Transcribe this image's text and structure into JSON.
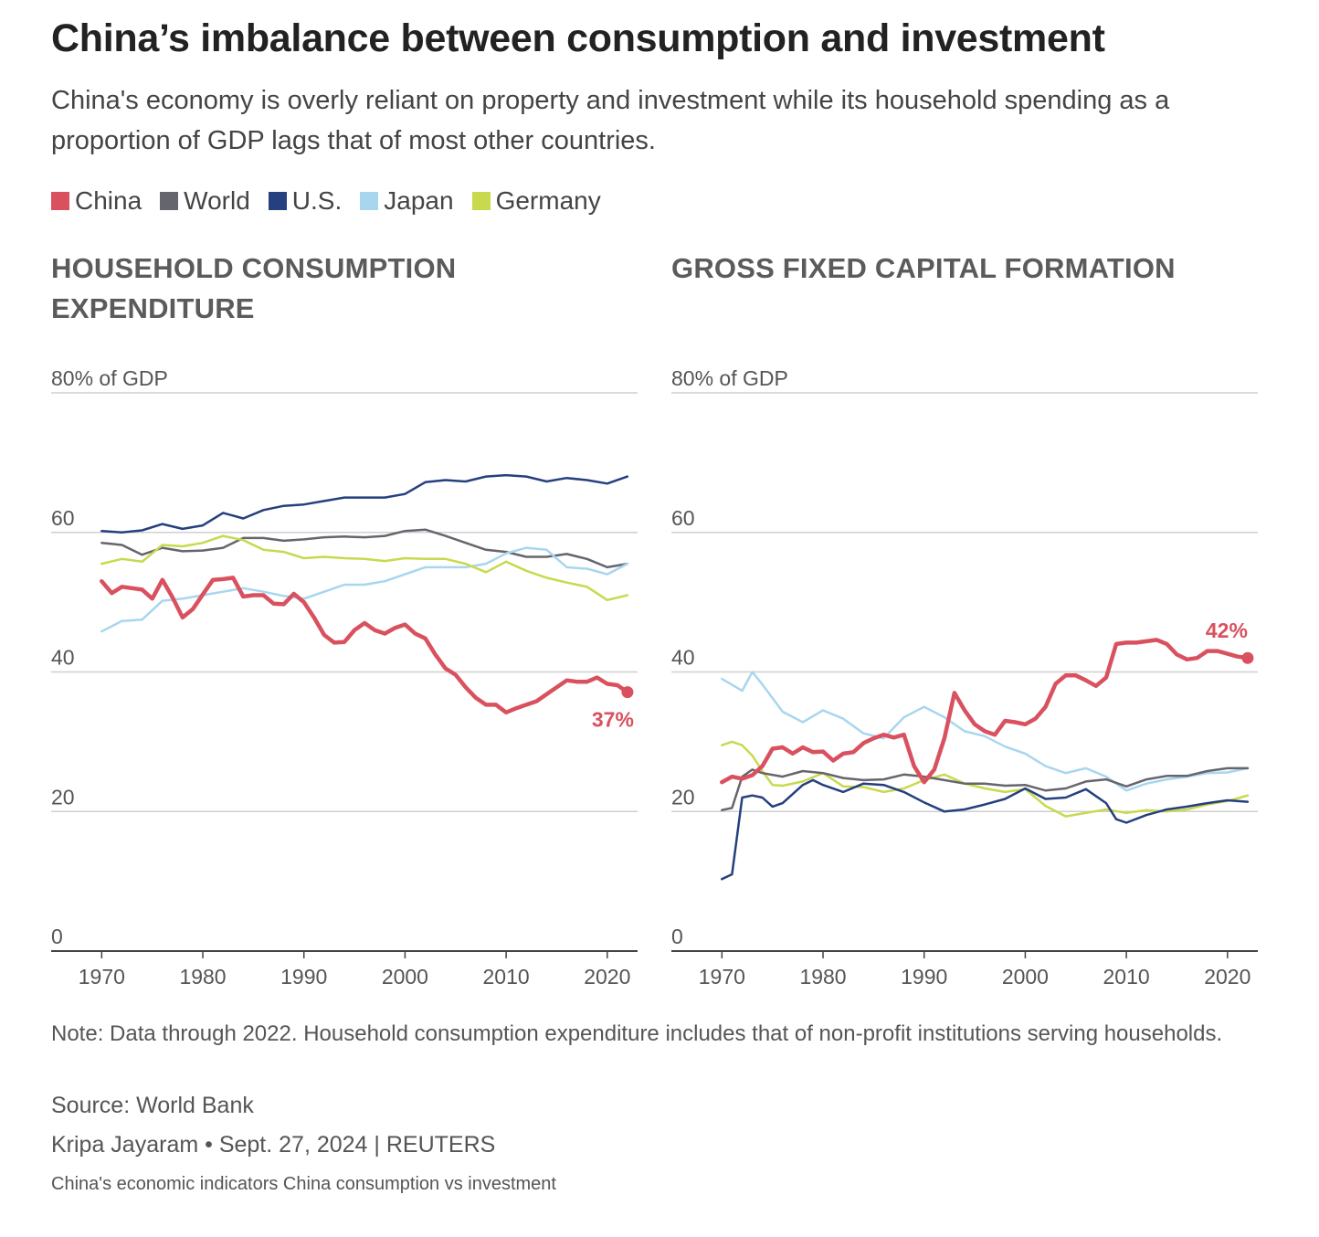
{
  "title": "China’s imbalance between consumption and investment",
  "subtitle": "China's economy is overly reliant on property and investment while its household spending as a proportion of GDP lags that of most other countries.",
  "legend": [
    {
      "name": "China",
      "color": "#d9515f"
    },
    {
      "name": "World",
      "color": "#65656d"
    },
    {
      "name": "U.S.",
      "color": "#253f7f"
    },
    {
      "name": "Japan",
      "color": "#a8d6ef"
    },
    {
      "name": "Germany",
      "color": "#c9d94e"
    }
  ],
  "note": "Note: Data through 2022. Household consumption expenditure includes that of non-profit institutions serving households.",
  "source": "Source: World Bank",
  "byline": "Kripa Jayaram • Sept. 27, 2024 | REUTERS",
  "caption": "China's economic indicators China consumption vs investment",
  "chart_data": [
    {
      "type": "line",
      "title": "HOUSEHOLD CONSUMPTION EXPENDITURE",
      "ylabel_top": "80% of GDP",
      "yticks": [
        0,
        20,
        40,
        60
      ],
      "ylim": [
        0,
        80
      ],
      "xlim": [
        1965,
        2023
      ],
      "xticks": [
        1970,
        1980,
        1990,
        2000,
        2010,
        2020
      ],
      "end_label": "37%",
      "series": [
        {
          "name": "World",
          "x": [
            1970,
            1972,
            1974,
            1976,
            1978,
            1980,
            1982,
            1984,
            1986,
            1988,
            1990,
            1992,
            1994,
            1996,
            1998,
            2000,
            2002,
            2004,
            2006,
            2008,
            2010,
            2012,
            2014,
            2016,
            2018,
            2020,
            2022
          ],
          "y": [
            58.5,
            58.2,
            56.8,
            57.8,
            57.3,
            57.4,
            57.8,
            59.2,
            59.2,
            58.8,
            59,
            59.3,
            59.4,
            59.3,
            59.5,
            60.2,
            60.4,
            59.5,
            58.5,
            57.5,
            57.2,
            56.5,
            56.5,
            56.9,
            56.2,
            55,
            55.5
          ]
        },
        {
          "name": "U.S.",
          "x": [
            1970,
            1972,
            1974,
            1976,
            1978,
            1980,
            1982,
            1984,
            1986,
            1988,
            1990,
            1992,
            1994,
            1996,
            1998,
            2000,
            2002,
            2004,
            2006,
            2008,
            2010,
            2012,
            2014,
            2016,
            2018,
            2020,
            2022
          ],
          "y": [
            60.2,
            60,
            60.3,
            61.2,
            60.5,
            61,
            62.8,
            62,
            63.2,
            63.8,
            64,
            64.5,
            65,
            65,
            65,
            65.5,
            67.2,
            67.5,
            67.3,
            68,
            68.2,
            68,
            67.3,
            67.8,
            67.5,
            67,
            68
          ]
        },
        {
          "name": "Japan",
          "x": [
            1970,
            1972,
            1974,
            1976,
            1978,
            1980,
            1982,
            1984,
            1986,
            1988,
            1990,
            1992,
            1994,
            1996,
            1998,
            2000,
            2002,
            2004,
            2006,
            2008,
            2010,
            2012,
            2014,
            2016,
            2018,
            2020,
            2022
          ],
          "y": [
            45.8,
            47.3,
            47.5,
            50.2,
            50.5,
            51,
            51.5,
            52,
            51.5,
            50.9,
            50.5,
            51.5,
            52.5,
            52.5,
            53,
            54,
            55,
            55,
            55,
            55.5,
            57,
            57.8,
            57.5,
            55,
            54.8,
            54,
            55.5
          ]
        },
        {
          "name": "Germany",
          "x": [
            1970,
            1972,
            1974,
            1976,
            1978,
            1980,
            1982,
            1984,
            1986,
            1988,
            1990,
            1992,
            1994,
            1996,
            1998,
            2000,
            2002,
            2004,
            2006,
            2008,
            2010,
            2012,
            2014,
            2016,
            2018,
            2020,
            2022
          ],
          "y": [
            55.5,
            56.2,
            55.8,
            58.2,
            58,
            58.5,
            59.5,
            58.9,
            57.5,
            57.2,
            56.3,
            56.5,
            56.3,
            56.2,
            55.9,
            56.3,
            56.2,
            56.2,
            55.5,
            54.3,
            55.8,
            54.5,
            53.5,
            52.8,
            52.2,
            50.3,
            51
          ]
        },
        {
          "name": "China",
          "x": [
            1970,
            1971,
            1972,
            1973,
            1974,
            1975,
            1976,
            1977,
            1978,
            1979,
            1980,
            1981,
            1982,
            1983,
            1984,
            1985,
            1986,
            1987,
            1988,
            1989,
            1990,
            1991,
            1992,
            1993,
            1994,
            1995,
            1996,
            1997,
            1998,
            1999,
            2000,
            2001,
            2002,
            2003,
            2004,
            2005,
            2006,
            2007,
            2008,
            2009,
            2010,
            2011,
            2012,
            2013,
            2014,
            2015,
            2016,
            2017,
            2018,
            2019,
            2020,
            2021,
            2022
          ],
          "y": [
            53,
            51.3,
            52.2,
            52,
            51.8,
            50.5,
            53.2,
            50.7,
            47.8,
            49,
            51.1,
            53.2,
            53.3,
            53.5,
            50.8,
            51,
            51,
            49.8,
            49.7,
            51.2,
            50,
            47.8,
            45.3,
            44.2,
            44.3,
            46,
            47,
            46,
            45.5,
            46.3,
            46.8,
            45.5,
            44.8,
            42.5,
            40.5,
            39.6,
            37.8,
            36.3,
            35.3,
            35.3,
            34.2,
            34.8,
            35.3,
            35.8,
            36.8,
            37.8,
            38.8,
            38.6,
            38.6,
            39.2,
            38.3,
            38.1,
            37.1
          ]
        }
      ]
    },
    {
      "type": "line",
      "title": "GROSS FIXED CAPITAL FORMATION",
      "ylabel_top": "80% of GDP",
      "yticks": [
        0,
        20,
        40,
        60
      ],
      "ylim": [
        0,
        80
      ],
      "xlim": [
        1965,
        2023
      ],
      "xticks": [
        1970,
        1980,
        1990,
        2000,
        2010,
        2020
      ],
      "end_label": "42%",
      "series": [
        {
          "name": "Japan",
          "x": [
            1970,
            1972,
            1973,
            1974,
            1976,
            1978,
            1980,
            1982,
            1984,
            1986,
            1988,
            1990,
            1992,
            1994,
            1996,
            1998,
            2000,
            2002,
            2004,
            2006,
            2008,
            2010,
            2012,
            2014,
            2016,
            2018,
            2020,
            2022
          ],
          "y": [
            39,
            37.3,
            40,
            38.2,
            34.3,
            32.8,
            34.5,
            33.3,
            31.2,
            30.5,
            33.5,
            35,
            33.5,
            31.5,
            30.8,
            29.3,
            28.3,
            26.5,
            25.5,
            26.2,
            25,
            23,
            24,
            24.6,
            25,
            25.5,
            25.6,
            26.2
          ]
        },
        {
          "name": "Germany",
          "x": [
            1970,
            1971,
            1972,
            1973,
            1974,
            1975,
            1976,
            1978,
            1980,
            1982,
            1984,
            1986,
            1988,
            1990,
            1992,
            1994,
            1996,
            1998,
            2000,
            2002,
            2004,
            2006,
            2008,
            2010,
            2012,
            2014,
            2016,
            2018,
            2020,
            2022
          ],
          "y": [
            29.5,
            30,
            29.5,
            28,
            25.8,
            23.8,
            23.7,
            24.3,
            25.5,
            23.6,
            23.5,
            22.8,
            23.3,
            24.5,
            25.3,
            24,
            23.3,
            22.8,
            23.2,
            20.8,
            19.3,
            19.8,
            20.3,
            19.8,
            20.2,
            20,
            20.3,
            21,
            21.5,
            22.3
          ]
        },
        {
          "name": "World",
          "x": [
            1970,
            1971,
            1972,
            1973,
            1974,
            1976,
            1978,
            1980,
            1982,
            1984,
            1986,
            1988,
            1990,
            1992,
            1994,
            1996,
            1998,
            2000,
            2002,
            2004,
            2006,
            2008,
            2010,
            2012,
            2014,
            2016,
            2018,
            2020,
            2022
          ],
          "y": [
            20.2,
            20.5,
            25,
            26,
            25.5,
            25,
            25.8,
            25.5,
            24.8,
            24.5,
            24.6,
            25.3,
            25,
            24.5,
            24,
            24,
            23.7,
            23.8,
            23,
            23.3,
            24.3,
            24.6,
            23.6,
            24.6,
            25.1,
            25.1,
            25.8,
            26.2,
            26.2
          ]
        },
        {
          "name": "U.S.",
          "x": [
            1970,
            1971,
            1972,
            1973,
            1974,
            1975,
            1976,
            1978,
            1979,
            1980,
            1982,
            1984,
            1986,
            1988,
            1990,
            1992,
            1994,
            1996,
            1998,
            2000,
            2002,
            2004,
            2006,
            2008,
            2009,
            2010,
            2012,
            2014,
            2016,
            2018,
            2020,
            2022
          ],
          "y": [
            10.3,
            11,
            22,
            22.3,
            22,
            20.7,
            21.2,
            23.8,
            24.5,
            23.8,
            22.8,
            24,
            23.8,
            22.8,
            21.3,
            20,
            20.3,
            21,
            21.8,
            23.3,
            21.8,
            22,
            23.2,
            21.2,
            18.9,
            18.4,
            19.5,
            20.3,
            20.7,
            21.2,
            21.6,
            21.4
          ]
        },
        {
          "name": "China",
          "x": [
            1970,
            1971,
            1972,
            1973,
            1974,
            1975,
            1976,
            1977,
            1978,
            1979,
            1980,
            1981,
            1982,
            1983,
            1984,
            1985,
            1986,
            1987,
            1988,
            1989,
            1990,
            1991,
            1992,
            1993,
            1994,
            1995,
            1996,
            1997,
            1998,
            1999,
            2000,
            2001,
            2002,
            2003,
            2004,
            2005,
            2006,
            2007,
            2008,
            2009,
            2010,
            2011,
            2012,
            2013,
            2014,
            2015,
            2016,
            2017,
            2018,
            2019,
            2020,
            2021,
            2022
          ],
          "y": [
            24.2,
            25,
            24.7,
            25.2,
            26.5,
            29,
            29.2,
            28.3,
            29.2,
            28.5,
            28.6,
            27.3,
            28.3,
            28.5,
            29.8,
            30.5,
            31,
            30.6,
            31,
            26.5,
            24.2,
            26,
            30.5,
            37,
            34.5,
            32.5,
            31.5,
            31,
            33,
            32.8,
            32.5,
            33.3,
            35,
            38.3,
            39.5,
            39.5,
            38.8,
            38,
            39.2,
            44,
            44.2,
            44.2,
            44.4,
            44.6,
            44,
            42.5,
            41.8,
            42,
            43,
            43,
            42.6,
            42.2,
            42
          ]
        }
      ]
    }
  ]
}
